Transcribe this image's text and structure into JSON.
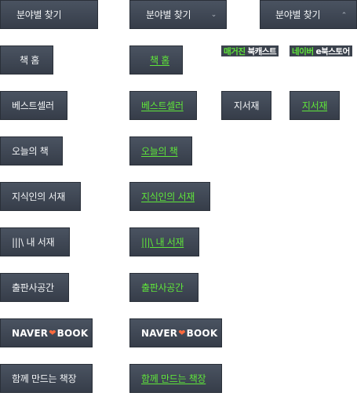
{
  "category": {
    "label": "분야별 찾기",
    "chevron_down": "⌄",
    "chevron_up": "⌃"
  },
  "menu": {
    "home": "책 홈",
    "bestseller": "베스트셀러",
    "today": "오늘의 책",
    "library": "지식인의 서재",
    "my_library": "|||\\ 내 서재",
    "publisher": "출판사공간",
    "together": "함께 만드는 책장",
    "jiseojae": "지서재"
  },
  "logo": {
    "naver": "NAVER",
    "book": "BOOK"
  },
  "tags": {
    "magazine_green": "매거진",
    "magazine_white": "북캐스트",
    "estore_green": "네이버",
    "estore_white": "e북스토어"
  },
  "colors": {
    "button_bg": "#3e4552",
    "active_text": "#5fe63a",
    "heart": "#ff6a3d"
  }
}
